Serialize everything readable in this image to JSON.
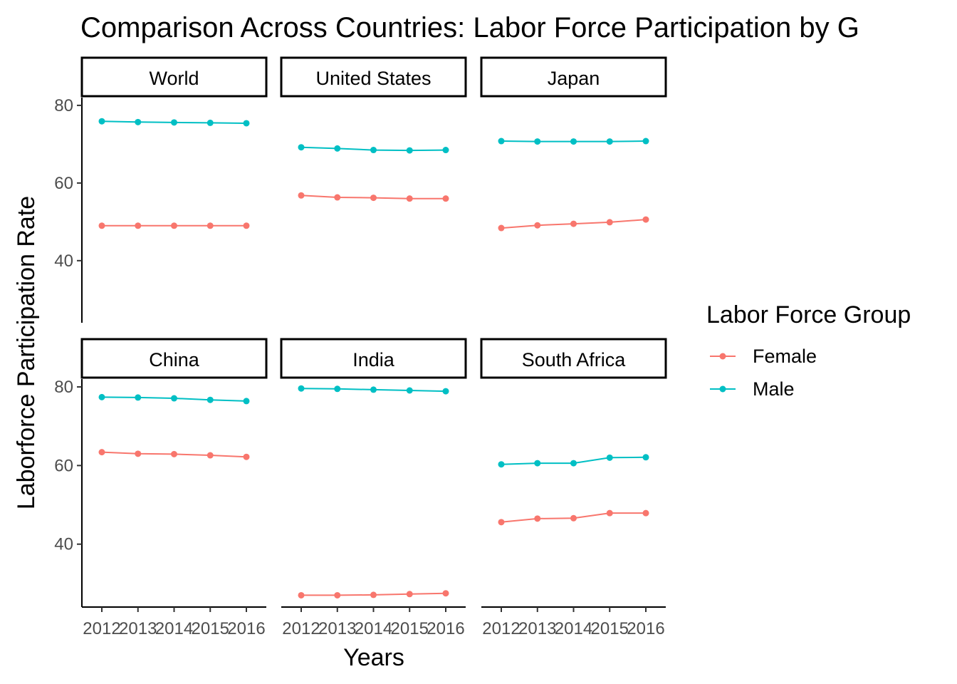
{
  "chart_data": {
    "type": "line",
    "title": "Comparison Across Countries: Labor Force Participation by G",
    "xlabel": "Years",
    "ylabel": "Laborforce Participation Rate",
    "x": [
      2012,
      2013,
      2014,
      2015,
      2016
    ],
    "x_tick_labels": [
      "2012",
      "2013",
      "2014",
      "2015",
      "2016"
    ],
    "ylim": [
      24,
      82
    ],
    "y_ticks": [
      40,
      60,
      80
    ],
    "legend": {
      "title": "Labor Force Group",
      "position": "right",
      "entries": [
        {
          "name": "Female",
          "color": "#F8766D"
        },
        {
          "name": "Male",
          "color": "#00BFC4"
        }
      ]
    },
    "grid": false,
    "facets": [
      {
        "label": "World",
        "series": [
          {
            "name": "Female",
            "values": [
              49.0,
              49.0,
              49.0,
              49.0,
              49.0
            ]
          },
          {
            "name": "Male",
            "values": [
              75.9,
              75.7,
              75.6,
              75.5,
              75.4
            ]
          }
        ]
      },
      {
        "label": "United States",
        "series": [
          {
            "name": "Female",
            "values": [
              56.8,
              56.3,
              56.2,
              56.0,
              56.0
            ]
          },
          {
            "name": "Male",
            "values": [
              69.2,
              68.9,
              68.5,
              68.4,
              68.5
            ]
          }
        ]
      },
      {
        "label": "Japan",
        "series": [
          {
            "name": "Female",
            "values": [
              48.4,
              49.1,
              49.5,
              49.9,
              50.6
            ]
          },
          {
            "name": "Male",
            "values": [
              70.8,
              70.7,
              70.7,
              70.7,
              70.8
            ]
          }
        ]
      },
      {
        "label": "China",
        "series": [
          {
            "name": "Female",
            "values": [
              63.4,
              63.0,
              62.9,
              62.6,
              62.2
            ]
          },
          {
            "name": "Male",
            "values": [
              77.4,
              77.3,
              77.1,
              76.7,
              76.4
            ]
          }
        ]
      },
      {
        "label": "India",
        "series": [
          {
            "name": "Female",
            "values": [
              27.0,
              27.0,
              27.1,
              27.3,
              27.5
            ]
          },
          {
            "name": "Male",
            "values": [
              79.6,
              79.5,
              79.3,
              79.1,
              78.9
            ]
          }
        ]
      },
      {
        "label": "South Africa",
        "series": [
          {
            "name": "Female",
            "values": [
              45.6,
              46.5,
              46.6,
              47.9,
              47.9
            ]
          },
          {
            "name": "Male",
            "values": [
              60.3,
              60.6,
              60.6,
              62.0,
              62.1
            ]
          }
        ]
      }
    ]
  }
}
